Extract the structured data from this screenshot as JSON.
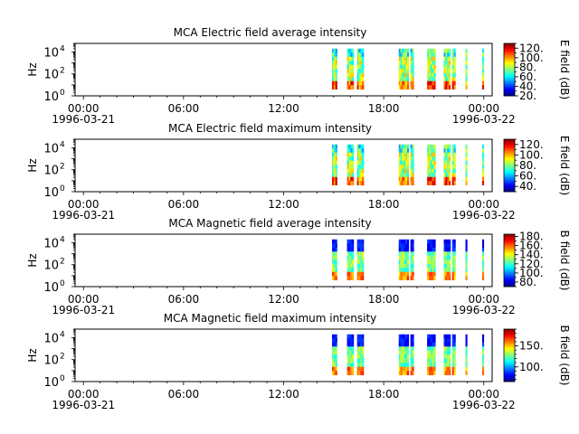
{
  "chart_data": [
    {
      "type": "heatmap",
      "title": "MCA  Electric field average intensity",
      "ylabel": "Hz",
      "y_scale": "log",
      "y_ticks": [
        {
          "base": "10",
          "exp": "0"
        },
        {
          "base": "10",
          "exp": "2"
        },
        {
          "base": "10",
          "exp": "4"
        }
      ],
      "x_ticks": [
        {
          "time": "00:00",
          "date": "1996-03-21"
        },
        {
          "time": "06:00",
          "date": ""
        },
        {
          "time": "12:00",
          "date": ""
        },
        {
          "time": "18:00",
          "date": ""
        },
        {
          "time": "00:00",
          "date": "1996-03-22"
        }
      ],
      "x_range_hours": [
        -0.5,
        24.5
      ],
      "data_intervals_hours": [
        [
          14.9,
          15.2
        ],
        [
          15.8,
          16.2
        ],
        [
          16.4,
          16.8
        ],
        [
          18.9,
          19.5
        ],
        [
          19.6,
          19.8
        ],
        [
          20.6,
          21.1
        ],
        [
          21.6,
          22.0
        ],
        [
          22.1,
          22.3
        ],
        [
          22.9,
          23.0
        ],
        [
          23.9,
          24.0
        ]
      ],
      "freq_range_hz": [
        4,
        20000
      ],
      "colorbar": {
        "label": "E field (dB)",
        "min": 20,
        "max": 130,
        "ticks": [
          "20.",
          "40.",
          "60.",
          "80.",
          "100.",
          "120."
        ]
      }
    },
    {
      "type": "heatmap",
      "title": "MCA  Electric field maximum intensity",
      "ylabel": "Hz",
      "y_scale": "log",
      "y_ticks": [
        {
          "base": "10",
          "exp": "0"
        },
        {
          "base": "10",
          "exp": "2"
        },
        {
          "base": "10",
          "exp": "4"
        }
      ],
      "x_ticks": [
        {
          "time": "00:00",
          "date": "1996-03-21"
        },
        {
          "time": "06:00",
          "date": ""
        },
        {
          "time": "12:00",
          "date": ""
        },
        {
          "time": "18:00",
          "date": ""
        },
        {
          "time": "00:00",
          "date": "1996-03-22"
        }
      ],
      "x_range_hours": [
        -0.5,
        24.5
      ],
      "data_intervals_hours": [
        [
          14.9,
          15.2
        ],
        [
          15.8,
          16.2
        ],
        [
          16.4,
          16.8
        ],
        [
          18.9,
          19.5
        ],
        [
          19.6,
          19.8
        ],
        [
          20.6,
          21.1
        ],
        [
          21.6,
          22.0
        ],
        [
          22.1,
          22.3
        ],
        [
          22.9,
          23.0
        ],
        [
          23.9,
          24.0
        ]
      ],
      "freq_range_hz": [
        4,
        20000
      ],
      "colorbar": {
        "label": "E field (dB)",
        "min": 30,
        "max": 130,
        "ticks": [
          "40.",
          "60.",
          "80.",
          "100.",
          "120."
        ]
      }
    },
    {
      "type": "heatmap",
      "title": "MCA  Magnetic field average intensity",
      "ylabel": "Hz",
      "y_scale": "log",
      "y_ticks": [
        {
          "base": "10",
          "exp": "0"
        },
        {
          "base": "10",
          "exp": "2"
        },
        {
          "base": "10",
          "exp": "4"
        }
      ],
      "x_ticks": [
        {
          "time": "00:00",
          "date": "1996-03-21"
        },
        {
          "time": "06:00",
          "date": ""
        },
        {
          "time": "12:00",
          "date": ""
        },
        {
          "time": "18:00",
          "date": ""
        },
        {
          "time": "00:00",
          "date": "1996-03-22"
        }
      ],
      "x_range_hours": [
        -0.5,
        24.5
      ],
      "data_intervals_hours": [
        [
          14.9,
          15.2
        ],
        [
          15.8,
          16.2
        ],
        [
          16.4,
          16.8
        ],
        [
          18.9,
          19.5
        ],
        [
          19.6,
          19.8
        ],
        [
          20.6,
          21.1
        ],
        [
          21.6,
          22.0
        ],
        [
          22.1,
          22.3
        ],
        [
          22.9,
          23.0
        ],
        [
          23.9,
          24.0
        ]
      ],
      "freq_range_hz": [
        4,
        20000
      ],
      "colorbar": {
        "label": "B field (dB)",
        "min": 70,
        "max": 185,
        "ticks": [
          "80.",
          "100.",
          "120.",
          "140.",
          "160.",
          "180."
        ]
      }
    },
    {
      "type": "heatmap",
      "title": "MCA  Magnetic field maximum intensity",
      "ylabel": "Hz",
      "y_scale": "log",
      "y_ticks": [
        {
          "base": "10",
          "exp": "0"
        },
        {
          "base": "10",
          "exp": "2"
        },
        {
          "base": "10",
          "exp": "4"
        }
      ],
      "x_ticks": [
        {
          "time": "00:00",
          "date": "1996-03-21"
        },
        {
          "time": "06:00",
          "date": ""
        },
        {
          "time": "12:00",
          "date": ""
        },
        {
          "time": "18:00",
          "date": ""
        },
        {
          "time": "00:00",
          "date": "1996-03-22"
        }
      ],
      "x_range_hours": [
        -0.5,
        24.5
      ],
      "data_intervals_hours": [
        [
          14.9,
          15.2
        ],
        [
          15.8,
          16.2
        ],
        [
          16.4,
          16.8
        ],
        [
          18.9,
          19.5
        ],
        [
          19.6,
          19.8
        ],
        [
          20.6,
          21.1
        ],
        [
          21.6,
          22.0
        ],
        [
          22.1,
          22.3
        ],
        [
          22.9,
          23.0
        ],
        [
          23.9,
          24.0
        ]
      ],
      "freq_range_hz": [
        4,
        20000
      ],
      "colorbar": {
        "label": "B field (dB)",
        "min": 65,
        "max": 190,
        "ticks": [
          "100.",
          "150."
        ]
      }
    }
  ]
}
